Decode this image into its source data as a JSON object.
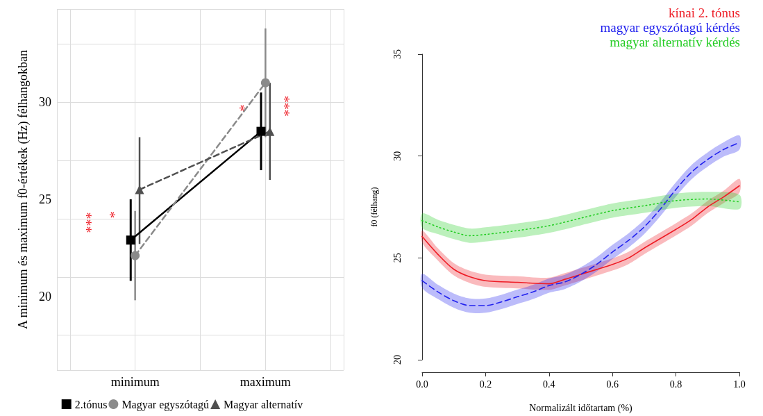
{
  "chart_data": [
    {
      "type": "line",
      "ylabel": "A minimum és maximum f0-értékek (Hz) félhangokban",
      "categories": [
        "minimum",
        "maximum"
      ],
      "ylim": [
        16.2,
        34.8
      ],
      "yticks": [
        20,
        25,
        30
      ],
      "grid": true,
      "legend": "bottom",
      "series": [
        {
          "name": "2.tónus",
          "color": "#000000",
          "values": [
            22.9,
            28.5
          ],
          "errors": [
            [
              20.8,
              25.0
            ],
            [
              26.5,
              30.5
            ]
          ],
          "marker": "square",
          "line_style": "solid"
        },
        {
          "name": "Magyar egyszótagú",
          "color": "#8a8a8a",
          "values": [
            22.1,
            31.0
          ],
          "errors": [
            [
              19.8,
              24.4
            ],
            [
              28.2,
              33.8
            ]
          ],
          "marker": "circle",
          "line_style": "dashed"
        },
        {
          "name": "Magyar alternatív",
          "color": "#505050",
          "values": [
            25.5,
            28.5
          ],
          "errors": [
            [
              22.7,
              28.2
            ],
            [
              26.0,
              31.0
            ]
          ],
          "marker": "triangle",
          "line_style": "dashed"
        }
      ],
      "annotations": [
        {
          "text": "***",
          "x": "minimum",
          "y": 23.8
        },
        {
          "text": "*",
          "x": "minimum",
          "y": 24.2
        },
        {
          "text": "*",
          "x": "maximum",
          "y": 29.7
        },
        {
          "text": "***",
          "x": "maximum",
          "y": 29.8
        }
      ]
    },
    {
      "type": "line",
      "xlabel": "Normalizált időtartam (%)",
      "ylabel": "f0 (félhang)",
      "xlim": [
        0,
        1
      ],
      "xticks": [
        {
          "value": 0,
          "label": "0.0"
        },
        0.2,
        0.4,
        0.6,
        0.8,
        {
          "value": 1,
          "label": "1.0"
        }
      ],
      "ylim": [
        20,
        35
      ],
      "yticks": [
        20,
        25,
        30,
        35
      ],
      "grid": false,
      "legend": "top right",
      "marker": "none",
      "series": [
        {
          "name": "kínai 2. tónus",
          "color": "#ee1c25",
          "line_style": "solid",
          "x": [
            0,
            0.05,
            0.1,
            0.15,
            0.2,
            0.3,
            0.4,
            0.45,
            0.5,
            0.6,
            0.65,
            0.7,
            0.8,
            0.85,
            0.9,
            0.95,
            1
          ],
          "values": [
            26.05,
            25.17,
            24.44,
            24.07,
            23.88,
            23.8,
            23.73,
            23.95,
            24.19,
            24.68,
            24.99,
            25.48,
            26.4,
            26.89,
            27.5,
            27.99,
            28.54
          ],
          "lower": [
            25.75,
            24.87,
            24.14,
            23.77,
            23.58,
            23.5,
            23.43,
            23.65,
            23.89,
            24.38,
            24.69,
            25.18,
            26.1,
            26.59,
            27.2,
            27.69,
            28.2
          ],
          "upper": [
            26.35,
            25.47,
            24.74,
            24.37,
            24.18,
            24.1,
            24.03,
            24.25,
            24.49,
            24.98,
            25.29,
            25.78,
            26.7,
            27.19,
            27.8,
            28.29,
            28.88
          ]
        },
        {
          "name": "magyar egyszótagú kérdés",
          "color": "#2222ee",
          "line_style": "dashed",
          "x": [
            0,
            0.05,
            0.1,
            0.15,
            0.2,
            0.25,
            0.3,
            0.35,
            0.4,
            0.45,
            0.5,
            0.55,
            0.6,
            0.65,
            0.7,
            0.75,
            0.8,
            0.85,
            0.9,
            0.95,
            1
          ],
          "values": [
            23.88,
            23.33,
            22.9,
            22.66,
            22.66,
            22.84,
            23.09,
            23.33,
            23.64,
            23.82,
            24.19,
            24.68,
            25.29,
            25.85,
            26.52,
            27.38,
            28.36,
            29.22,
            29.83,
            30.32,
            30.66
          ],
          "lower": [
            23.53,
            22.98,
            22.55,
            22.31,
            22.31,
            22.49,
            22.74,
            22.98,
            23.29,
            23.47,
            23.84,
            24.33,
            24.94,
            25.5,
            26.17,
            27.03,
            28.01,
            28.87,
            29.48,
            29.97,
            30.31
          ],
          "upper": [
            24.23,
            23.68,
            23.25,
            23.01,
            23.01,
            23.19,
            23.44,
            23.68,
            23.99,
            24.17,
            24.54,
            25.03,
            25.64,
            26.2,
            26.87,
            27.73,
            28.71,
            29.57,
            30.18,
            30.67,
            31.01
          ]
        },
        {
          "name": "magyar alternatív kérdés",
          "color": "#22cc22",
          "line_style": "dotted",
          "x": [
            0,
            0.05,
            0.1,
            0.15,
            0.2,
            0.3,
            0.4,
            0.5,
            0.6,
            0.7,
            0.8,
            0.9,
            1
          ],
          "values": [
            26.83,
            26.52,
            26.27,
            26.09,
            26.15,
            26.34,
            26.58,
            26.95,
            27.32,
            27.56,
            27.81,
            27.89,
            27.75
          ],
          "lower": [
            26.48,
            26.17,
            25.92,
            25.74,
            25.8,
            25.99,
            26.23,
            26.6,
            26.97,
            27.21,
            27.46,
            27.54,
            27.4
          ],
          "upper": [
            27.18,
            26.87,
            26.62,
            26.44,
            26.5,
            26.69,
            26.93,
            27.3,
            27.67,
            27.91,
            28.16,
            28.24,
            28.1
          ]
        }
      ]
    }
  ]
}
